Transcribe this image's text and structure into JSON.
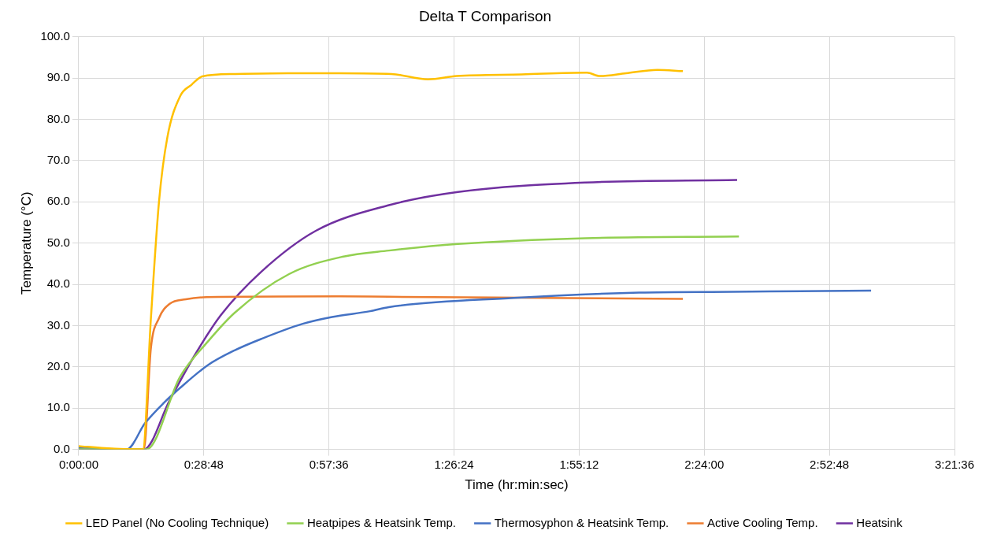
{
  "chart_data": {
    "type": "line",
    "title": "Delta T Comparison",
    "xlabel": "Time (hr:min:sec)",
    "ylabel": "Temperature (°C)",
    "xlim": [
      0,
      3.36
    ],
    "xticks": [
      {
        "value": 0,
        "label": "0:00:00"
      },
      {
        "value": 0.48,
        "label": "0:28:48"
      },
      {
        "value": 0.96,
        "label": "0:57:36"
      },
      {
        "value": 1.44,
        "label": "1:26:24"
      },
      {
        "value": 1.92,
        "label": "1:55:12"
      },
      {
        "value": 2.4,
        "label": "2:24:00"
      },
      {
        "value": 2.88,
        "label": "2:52:48"
      },
      {
        "value": 3.36,
        "label": "3:21:36"
      }
    ],
    "ylim": [
      0,
      100
    ],
    "yticks": [
      {
        "value": 0,
        "label": "0.0"
      },
      {
        "value": 10,
        "label": "10.0"
      },
      {
        "value": 20,
        "label": "20.0"
      },
      {
        "value": 30,
        "label": "30.0"
      },
      {
        "value": 40,
        "label": "40.0"
      },
      {
        "value": 50,
        "label": "50.0"
      },
      {
        "value": 60,
        "label": "60.0"
      },
      {
        "value": 70,
        "label": "70.0"
      },
      {
        "value": 80,
        "label": "80.0"
      },
      {
        "value": 90,
        "label": "90.0"
      },
      {
        "value": 100,
        "label": "100.0"
      }
    ],
    "grid": true,
    "legend": "bottom",
    "marker": "none",
    "line_style": "solid",
    "series": [
      {
        "name": "LED Panel (No Cooling Technique)",
        "color": "#ffc000",
        "x": [
          0,
          0.1,
          0.24,
          0.246,
          0.277,
          0.308,
          0.34,
          0.389,
          0.433,
          0.474,
          0.6,
          0.8,
          1.0,
          1.2,
          1.34,
          1.45,
          1.7,
          1.95,
          2.0,
          2.1,
          2.22,
          2.318
        ],
        "values": [
          0.8,
          0.3,
          0,
          0,
          31.8,
          60,
          75.6,
          85.6,
          88.4,
          90.4,
          91,
          91.2,
          91.2,
          91,
          89.7,
          90.5,
          90.9,
          91.3,
          90.5,
          91.2,
          92,
          91.7
        ]
      },
      {
        "name": "Heatpipes & Heatsink Temp.",
        "color": "#92d050",
        "x": [
          0,
          0.26,
          0.389,
          0.495,
          0.598,
          0.807,
          1.012,
          1.19,
          1.455,
          1.944,
          2.533
        ],
        "values": [
          0,
          0,
          17.6,
          26.1,
          33.1,
          42.5,
          46.7,
          48.2,
          49.8,
          51.2,
          51.6
        ]
      },
      {
        "name": "Thermosyphon & Heatsink Temp.",
        "color": "#4472c4",
        "x": [
          0,
          0.184,
          0.255,
          0.327,
          0.389,
          0.495,
          0.598,
          0.701,
          0.857,
          0.972,
          1.118,
          1.19,
          1.67,
          2.15,
          2.51,
          3.04
        ],
        "values": [
          0.3,
          0,
          6.4,
          11.3,
          14.9,
          20.4,
          24,
          26.8,
          30.4,
          32.1,
          33.5,
          34.5,
          36.7,
          38,
          38.2,
          38.5
        ]
      },
      {
        "name": "Active Cooling Temp.",
        "color": "#ed7d31",
        "x": [
          0,
          0.25,
          0.277,
          0.308,
          0.349,
          0.411,
          0.49,
          1.0,
          1.19,
          1.6,
          2.318
        ],
        "values": [
          0.3,
          0,
          24.6,
          31.8,
          35.3,
          36.4,
          36.9,
          37.1,
          37,
          36.8,
          36.5
        ]
      },
      {
        "name": "Heatsink",
        "color": "#7030a0",
        "x": [
          0,
          0.25,
          0.349,
          0.442,
          0.545,
          0.701,
          0.91,
          1.19,
          1.455,
          1.944,
          2.526
        ],
        "values": [
          0,
          0,
          11.9,
          22.5,
          32.5,
          43.1,
          53,
          59.2,
          62.4,
          64.7,
          65.3
        ]
      }
    ]
  }
}
